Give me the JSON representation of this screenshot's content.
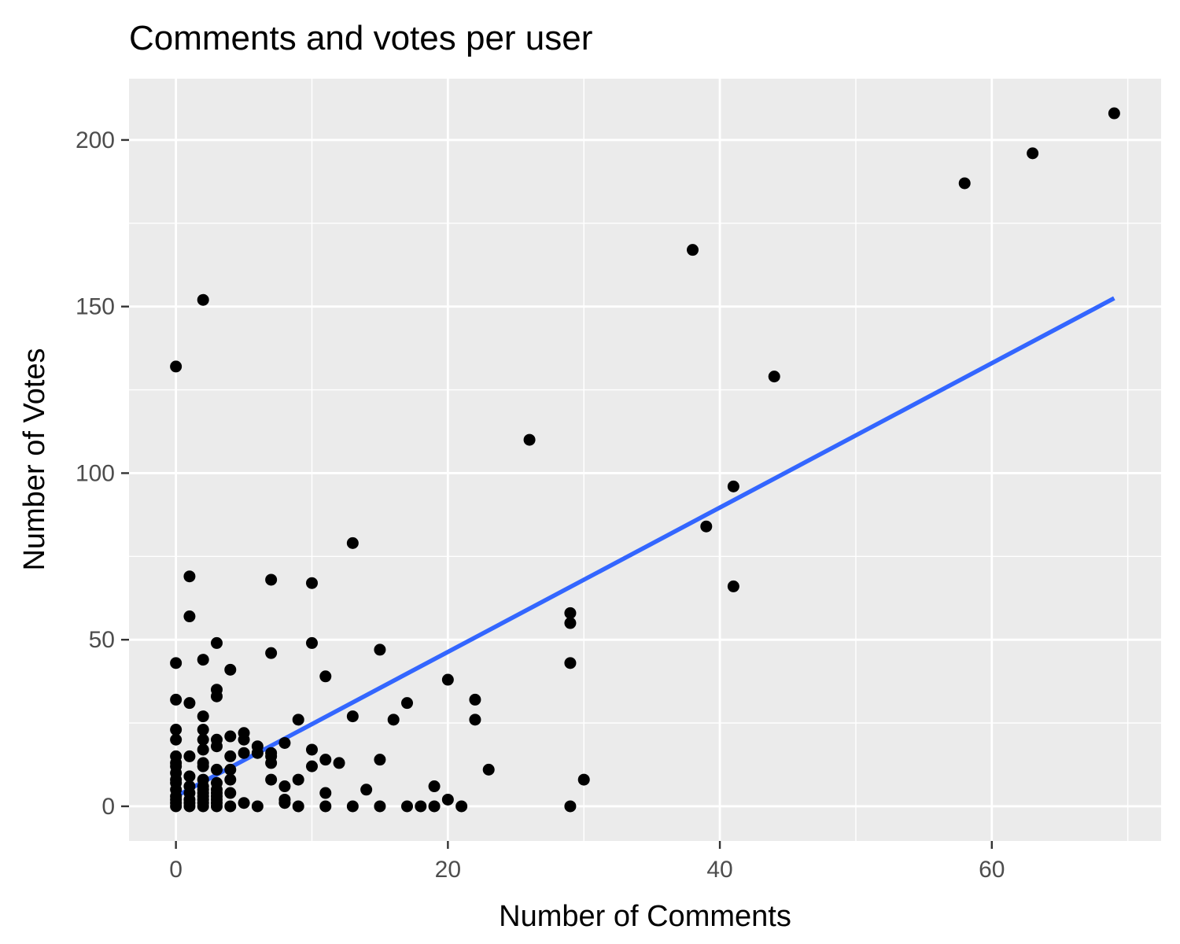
{
  "chart_data": {
    "type": "scatter",
    "title": "Comments and votes per user",
    "xlabel": "Number of Comments",
    "ylabel": "Number of Votes",
    "xlim": [
      -3.45,
      72.45
    ],
    "ylim": [
      -10.4,
      218.4
    ],
    "x_ticks": [
      0,
      20,
      40,
      60
    ],
    "y_ticks": [
      0,
      50,
      100,
      150,
      200
    ],
    "x_tick_labels": [
      "0",
      "20",
      "40",
      "60"
    ],
    "y_tick_labels": [
      "0",
      "50",
      "100",
      "150",
      "200"
    ],
    "grid": true,
    "legend": "none",
    "colors": {
      "panel_background": "#ebebeb",
      "grid_line": "#ffffff",
      "point": "#000000",
      "trend_line": "#3366ff",
      "tick_label": "#4d4d4d",
      "tick_mark": "#333333"
    },
    "trend_line": {
      "method": "linear",
      "x": [
        0,
        69
      ],
      "y": [
        3,
        152.5
      ]
    },
    "points": [
      [
        0,
        132
      ],
      [
        0,
        43
      ],
      [
        0,
        32
      ],
      [
        0,
        23
      ],
      [
        0,
        20
      ],
      [
        0,
        15
      ],
      [
        0,
        13
      ],
      [
        0,
        12
      ],
      [
        0,
        10
      ],
      [
        0,
        8
      ],
      [
        0,
        7
      ],
      [
        0,
        5
      ],
      [
        0,
        3
      ],
      [
        0,
        2
      ],
      [
        0,
        1
      ],
      [
        0,
        0
      ],
      [
        1,
        69
      ],
      [
        1,
        57
      ],
      [
        1,
        31
      ],
      [
        1,
        15
      ],
      [
        1,
        9
      ],
      [
        1,
        6
      ],
      [
        1,
        4
      ],
      [
        1,
        2
      ],
      [
        1,
        1
      ],
      [
        1,
        0
      ],
      [
        2,
        152
      ],
      [
        2,
        44
      ],
      [
        2,
        27
      ],
      [
        2,
        23
      ],
      [
        2,
        20
      ],
      [
        2,
        17
      ],
      [
        2,
        13
      ],
      [
        2,
        12
      ],
      [
        2,
        8
      ],
      [
        2,
        6
      ],
      [
        2,
        5
      ],
      [
        2,
        4
      ],
      [
        2,
        3
      ],
      [
        2,
        2
      ],
      [
        2,
        1
      ],
      [
        2,
        0
      ],
      [
        3,
        49
      ],
      [
        3,
        35
      ],
      [
        3,
        33
      ],
      [
        3,
        20
      ],
      [
        3,
        18
      ],
      [
        3,
        11
      ],
      [
        3,
        7
      ],
      [
        3,
        5
      ],
      [
        3,
        4
      ],
      [
        3,
        3
      ],
      [
        3,
        2
      ],
      [
        3,
        1
      ],
      [
        3,
        0
      ],
      [
        4,
        41
      ],
      [
        4,
        21
      ],
      [
        4,
        15
      ],
      [
        4,
        11
      ],
      [
        4,
        8
      ],
      [
        4,
        4
      ],
      [
        4,
        0
      ],
      [
        5,
        22
      ],
      [
        5,
        20
      ],
      [
        5,
        16
      ],
      [
        5,
        1
      ],
      [
        6,
        18
      ],
      [
        6,
        16
      ],
      [
        6,
        0
      ],
      [
        7,
        68
      ],
      [
        7,
        46
      ],
      [
        7,
        16
      ],
      [
        7,
        15
      ],
      [
        7,
        13
      ],
      [
        7,
        8
      ],
      [
        8,
        19
      ],
      [
        8,
        6
      ],
      [
        8,
        2
      ],
      [
        8,
        1
      ],
      [
        9,
        26
      ],
      [
        9,
        8
      ],
      [
        9,
        0
      ],
      [
        10,
        67
      ],
      [
        10,
        49
      ],
      [
        10,
        17
      ],
      [
        10,
        12
      ],
      [
        11,
        39
      ],
      [
        11,
        14
      ],
      [
        11,
        4
      ],
      [
        11,
        0
      ],
      [
        12,
        13
      ],
      [
        13,
        79
      ],
      [
        13,
        27
      ],
      [
        13,
        0
      ],
      [
        14,
        5
      ],
      [
        15,
        47
      ],
      [
        15,
        14
      ],
      [
        15,
        0
      ],
      [
        16,
        26
      ],
      [
        17,
        31
      ],
      [
        17,
        0
      ],
      [
        18,
        0
      ],
      [
        19,
        6
      ],
      [
        19,
        0
      ],
      [
        20,
        38
      ],
      [
        20,
        2
      ],
      [
        21,
        0
      ],
      [
        22,
        32
      ],
      [
        22,
        26
      ],
      [
        23,
        11
      ],
      [
        26,
        110
      ],
      [
        29,
        58
      ],
      [
        29,
        55
      ],
      [
        29,
        43
      ],
      [
        29,
        0
      ],
      [
        30,
        8
      ],
      [
        38,
        167
      ],
      [
        39,
        84
      ],
      [
        41,
        96
      ],
      [
        41,
        66
      ],
      [
        44,
        129
      ],
      [
        58,
        187
      ],
      [
        63,
        196
      ],
      [
        69,
        208
      ]
    ]
  }
}
